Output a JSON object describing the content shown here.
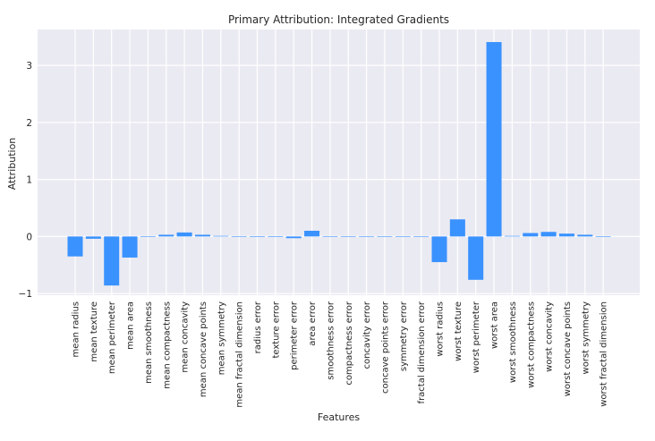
{
  "chart_data": {
    "type": "bar",
    "title": "Primary Attribution: Integrated Gradients",
    "xlabel": "Features",
    "ylabel": "Attribution",
    "ylim": [
      -1.03,
      3.63
    ],
    "yticks": [
      -1,
      0,
      1,
      2,
      3
    ],
    "grid": true,
    "bar_color": "#3a92ff",
    "background_color": "#eaeaf2",
    "categories": [
      "mean radius",
      "mean texture",
      "mean perimeter",
      "mean area",
      "mean smoothness",
      "mean compactness",
      "mean concavity",
      "mean concave points",
      "mean symmetry",
      "mean fractal dimension",
      "radius error",
      "texture error",
      "perimeter error",
      "area error",
      "smoothness error",
      "compactness error",
      "concavity error",
      "concave points error",
      "symmetry error",
      "fractal dimension error",
      "worst radius",
      "worst texture",
      "worst perimeter",
      "worst area",
      "worst smoothness",
      "worst compactness",
      "worst concavity",
      "worst concave points",
      "worst symmetry",
      "worst fractal dimension"
    ],
    "values": [
      -0.35,
      -0.04,
      -0.86,
      -0.37,
      0,
      0.03,
      0.07,
      0.03,
      0.01,
      0,
      -0.01,
      -0.01,
      -0.03,
      0.1,
      0,
      0,
      0,
      0,
      0,
      0,
      -0.45,
      0.3,
      -0.76,
      3.41,
      0.01,
      0.06,
      0.08,
      0.05,
      0.03,
      0
    ]
  }
}
